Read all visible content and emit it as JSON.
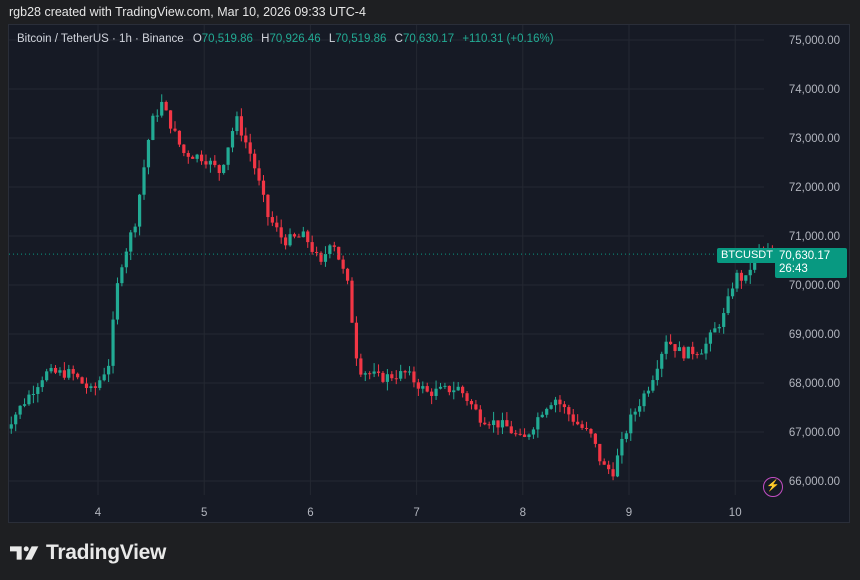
{
  "header": {
    "caption": "rgb28 created with TradingView.com, Mar 10, 2026 09:33 UTC-4"
  },
  "legend": {
    "symbol": "Bitcoin / TetherUS · 1h · Binance",
    "o_label": "O",
    "o_value": "70,519.86",
    "h_label": "H",
    "h_value": "70,926.46",
    "l_label": "L",
    "l_value": "70,519.86",
    "c_label": "C",
    "c_value": "70,630.17",
    "change": "+110.31 (+0.16%)"
  },
  "price_tag": {
    "symbol": "BTCUSDT",
    "price": "70,630.17",
    "countdown": "26:43"
  },
  "brand": {
    "name": "TradingView"
  },
  "colors": {
    "up": "#22ab94",
    "down": "#f23645",
    "background": "#161a25",
    "grid": "#242832",
    "tag": "#089981"
  },
  "icons": {
    "alert": "bolt-icon",
    "logo": "tradingview-logo-icon"
  },
  "chart_data": {
    "type": "candlestick",
    "symbol": "BTCUSDT",
    "interval": "1h",
    "ylim": [
      65800,
      75300
    ],
    "y_ticks": [
      "75,000.00",
      "74,000.00",
      "73,000.00",
      "72,000.00",
      "71,000.00",
      "70,000.00",
      "69,000.00",
      "68,000.00",
      "67,000.00",
      "66,000.00"
    ],
    "y_tick_values": [
      75000,
      74000,
      73000,
      72000,
      71000,
      70000,
      69000,
      68000,
      67000,
      66000
    ],
    "x_ticks": [
      "4",
      "5",
      "6",
      "7",
      "8",
      "9",
      "10"
    ],
    "last_price": 70630.17,
    "series": [
      {
        "x": 3.1,
        "close": 67000
      },
      {
        "x": 3.3,
        "close": 67600
      },
      {
        "x": 3.5,
        "close": 68200
      },
      {
        "x": 3.75,
        "close": 68200
      },
      {
        "x": 3.95,
        "close": 67800
      },
      {
        "x": 4.1,
        "close": 68400
      },
      {
        "x": 4.2,
        "close": 70300
      },
      {
        "x": 4.35,
        "close": 71300
      },
      {
        "x": 4.5,
        "close": 73300
      },
      {
        "x": 4.6,
        "close": 73700
      },
      {
        "x": 4.8,
        "close": 72700
      },
      {
        "x": 5.0,
        "close": 72600
      },
      {
        "x": 5.15,
        "close": 72300
      },
      {
        "x": 5.3,
        "close": 73400
      },
      {
        "x": 5.45,
        "close": 72600
      },
      {
        "x": 5.6,
        "close": 71400
      },
      {
        "x": 5.75,
        "close": 70900
      },
      {
        "x": 5.95,
        "close": 71000
      },
      {
        "x": 6.1,
        "close": 70400
      },
      {
        "x": 6.2,
        "close": 71000
      },
      {
        "x": 6.35,
        "close": 70000
      },
      {
        "x": 6.45,
        "close": 68300
      },
      {
        "x": 6.65,
        "close": 68100
      },
      {
        "x": 6.9,
        "close": 68200
      },
      {
        "x": 7.1,
        "close": 67800
      },
      {
        "x": 7.4,
        "close": 67900
      },
      {
        "x": 7.6,
        "close": 67300
      },
      {
        "x": 7.85,
        "close": 67100
      },
      {
        "x": 8.0,
        "close": 66800
      },
      {
        "x": 8.2,
        "close": 67500
      },
      {
        "x": 8.3,
        "close": 67700
      },
      {
        "x": 8.5,
        "close": 67200
      },
      {
        "x": 8.65,
        "close": 66900
      },
      {
        "x": 8.75,
        "close": 66300
      },
      {
        "x": 8.85,
        "close": 66200
      },
      {
        "x": 9.0,
        "close": 67200
      },
      {
        "x": 9.2,
        "close": 68000
      },
      {
        "x": 9.35,
        "close": 68900
      },
      {
        "x": 9.5,
        "close": 68600
      },
      {
        "x": 9.7,
        "close": 68700
      },
      {
        "x": 9.9,
        "close": 69400
      },
      {
        "x": 10.0,
        "close": 70200
      },
      {
        "x": 10.1,
        "close": 70100
      },
      {
        "x": 10.2,
        "close": 70700
      },
      {
        "x": 10.35,
        "close": 70630
      }
    ]
  }
}
